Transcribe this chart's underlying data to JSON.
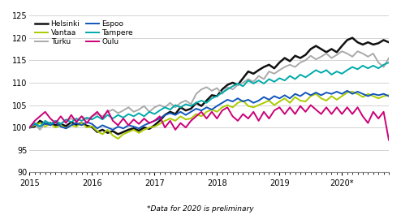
{
  "footnote": "*Data for 2020 is preliminary",
  "ylim": [
    90,
    125
  ],
  "yticks": [
    90,
    95,
    100,
    105,
    110,
    115,
    120,
    125
  ],
  "xtick_labels": [
    "2015",
    "2016",
    "2017",
    "2018",
    "2019",
    "2020*"
  ],
  "xtick_pos": [
    0,
    12,
    24,
    36,
    48,
    60
  ],
  "n_months": 70,
  "legend_entries": [
    {
      "label": "Helsinki",
      "color": "#111111"
    },
    {
      "label": "Vantaa",
      "color": "#aacc00"
    },
    {
      "label": "Turku",
      "color": "#aaaaaa"
    },
    {
      "label": "Espoo",
      "color": "#1155bb"
    },
    {
      "label": "Tampere",
      "color": "#00aaaa"
    },
    {
      "label": "Oulu",
      "color": "#cc0077"
    }
  ],
  "series": {
    "Helsinki": [
      100.0,
      100.2,
      101.5,
      100.8,
      101.0,
      100.5,
      100.8,
      100.3,
      101.2,
      100.6,
      101.0,
      100.4,
      100.1,
      99.0,
      99.5,
      98.8,
      99.2,
      98.5,
      99.0,
      99.5,
      99.8,
      99.3,
      100.0,
      99.7,
      100.5,
      101.5,
      102.8,
      103.5,
      103.0,
      104.5,
      103.8,
      104.2,
      105.5,
      104.8,
      106.0,
      107.2,
      107.0,
      108.5,
      109.5,
      110.0,
      109.5,
      111.0,
      112.5,
      112.0,
      112.8,
      113.5,
      114.0,
      113.2,
      114.5,
      115.5,
      114.8,
      116.0,
      115.5,
      116.2,
      117.5,
      118.2,
      117.5,
      116.8,
      117.5,
      116.8,
      118.2,
      119.5,
      120.0,
      119.0,
      118.5,
      119.0,
      118.5,
      118.8,
      119.5,
      119.0
    ],
    "Vantaa": [
      100.0,
      100.5,
      101.0,
      100.2,
      100.8,
      100.0,
      100.5,
      99.8,
      100.5,
      100.2,
      101.0,
      100.0,
      100.3,
      99.2,
      98.5,
      99.5,
      98.2,
      97.5,
      98.5,
      99.0,
      99.5,
      98.8,
      99.5,
      100.0,
      100.2,
      100.8,
      101.5,
      102.0,
      101.5,
      102.5,
      101.8,
      102.0,
      103.0,
      102.5,
      103.5,
      104.0,
      103.5,
      104.5,
      105.0,
      104.5,
      105.5,
      106.0,
      104.8,
      104.5,
      105.0,
      105.5,
      106.0,
      105.0,
      105.8,
      106.5,
      105.5,
      106.8,
      106.0,
      105.8,
      107.0,
      107.5,
      106.5,
      106.0,
      107.0,
      106.2,
      107.0,
      107.8,
      108.0,
      107.5,
      106.8,
      107.5,
      107.0,
      106.5,
      107.0,
      107.2
    ],
    "Turku": [
      100.0,
      100.8,
      99.5,
      101.0,
      100.5,
      101.5,
      100.8,
      101.5,
      102.0,
      101.5,
      102.5,
      101.8,
      102.5,
      103.0,
      102.5,
      103.5,
      104.0,
      103.2,
      103.8,
      104.5,
      103.5,
      104.0,
      104.8,
      103.5,
      104.5,
      105.0,
      104.5,
      105.5,
      104.5,
      105.5,
      106.0,
      105.2,
      107.5,
      108.5,
      109.0,
      108.2,
      108.8,
      107.5,
      109.0,
      108.5,
      109.5,
      110.0,
      110.8,
      110.2,
      111.5,
      110.8,
      112.5,
      112.0,
      112.8,
      113.5,
      114.0,
      113.5,
      114.5,
      115.0,
      116.0,
      115.2,
      115.8,
      116.5,
      115.5,
      116.2,
      117.0,
      116.5,
      115.8,
      117.0,
      116.5,
      115.8,
      116.5,
      114.5,
      113.5,
      115.5
    ],
    "Espoo": [
      100.0,
      100.8,
      100.2,
      101.0,
      100.5,
      101.2,
      100.2,
      99.8,
      100.5,
      101.0,
      100.5,
      101.2,
      100.8,
      99.8,
      100.5,
      100.0,
      99.5,
      100.2,
      99.8,
      100.5,
      100.2,
      99.8,
      100.5,
      101.0,
      101.5,
      102.0,
      102.8,
      103.2,
      102.8,
      103.5,
      102.8,
      103.5,
      104.2,
      103.8,
      104.5,
      104.0,
      104.8,
      105.5,
      106.2,
      105.8,
      106.5,
      105.8,
      106.2,
      105.5,
      106.0,
      106.8,
      106.2,
      107.0,
      106.5,
      107.2,
      106.5,
      107.5,
      107.0,
      107.8,
      107.2,
      107.8,
      107.2,
      107.8,
      107.5,
      108.0,
      107.5,
      108.2,
      107.5,
      108.0,
      107.5,
      107.0,
      107.5,
      107.2,
      107.5,
      107.0
    ],
    "Tampere": [
      100.0,
      101.0,
      100.2,
      101.5,
      100.8,
      101.5,
      100.8,
      101.8,
      101.2,
      102.0,
      101.5,
      102.2,
      101.8,
      102.5,
      101.8,
      102.8,
      102.0,
      102.8,
      102.2,
      103.0,
      102.5,
      103.2,
      102.5,
      103.5,
      103.0,
      103.8,
      104.5,
      104.0,
      105.0,
      104.5,
      105.2,
      104.8,
      105.5,
      106.0,
      105.5,
      106.5,
      107.0,
      107.8,
      108.5,
      109.2,
      109.8,
      109.2,
      110.5,
      109.8,
      110.5,
      109.8,
      110.8,
      110.2,
      111.0,
      110.5,
      111.5,
      110.8,
      111.8,
      111.2,
      112.0,
      112.8,
      112.2,
      112.8,
      111.8,
      112.5,
      112.0,
      112.8,
      113.5,
      113.0,
      113.8,
      113.2,
      113.8,
      113.2,
      114.0,
      114.5
    ],
    "Oulu": [
      100.0,
      101.5,
      102.5,
      103.5,
      102.0,
      101.0,
      102.5,
      101.0,
      102.8,
      101.2,
      102.5,
      101.0,
      102.5,
      103.5,
      102.0,
      103.8,
      101.5,
      100.5,
      102.0,
      100.5,
      101.8,
      100.8,
      102.0,
      101.0,
      101.5,
      102.5,
      100.0,
      101.5,
      99.5,
      101.0,
      100.0,
      101.5,
      102.5,
      103.5,
      102.0,
      103.5,
      102.0,
      103.8,
      104.5,
      102.5,
      101.5,
      103.0,
      102.0,
      103.5,
      101.5,
      103.5,
      102.0,
      103.8,
      104.5,
      103.0,
      104.5,
      103.0,
      104.8,
      103.5,
      105.0,
      104.0,
      103.0,
      104.5,
      103.0,
      104.5,
      103.0,
      104.5,
      103.0,
      104.5,
      102.5,
      101.0,
      103.5,
      102.0,
      103.5,
      97.2
    ]
  }
}
